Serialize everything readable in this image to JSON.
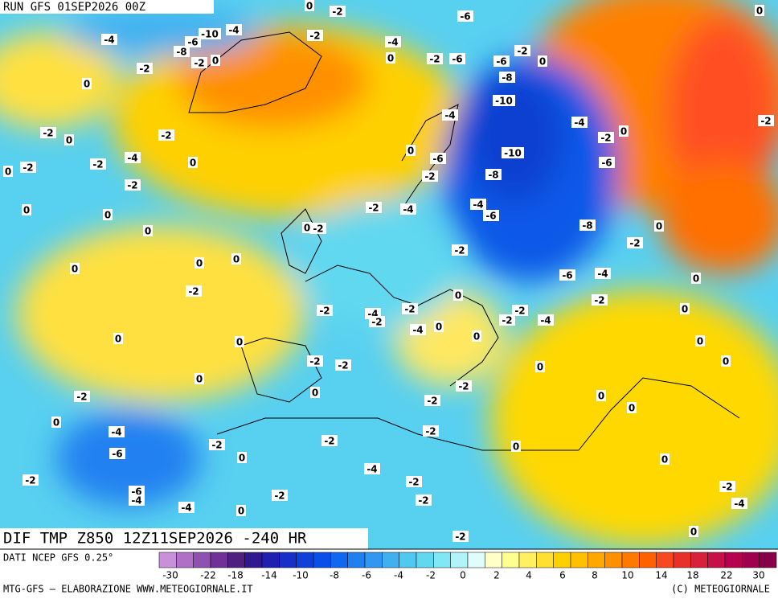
{
  "header": {
    "run": "RUN GFS 01SEP2026 00Z",
    "field": "DIF TMP Z850 12Z11SEP2026 -240 HR"
  },
  "contour_labels": [
    -4,
    -2,
    0,
    -2,
    0,
    -2,
    -4,
    -2,
    0,
    -2,
    0,
    -2,
    0,
    0,
    0,
    0,
    0,
    0,
    -2,
    0,
    0,
    0,
    -2,
    0,
    -4,
    -6,
    -2,
    0,
    -2,
    -6,
    -4,
    -4,
    0,
    -2,
    -2,
    -4,
    -2,
    -2,
    -2,
    -2,
    0,
    -2,
    -2,
    -2,
    -4,
    -2,
    -2,
    -4,
    0,
    0,
    -2,
    0,
    -2,
    0,
    0,
    -2,
    -2,
    -4,
    -6,
    -4,
    -2,
    -2,
    0,
    0,
    0,
    0,
    0,
    0,
    0,
    0,
    -2,
    -4,
    0,
    -2,
    -8,
    -6,
    -4,
    -8,
    -10,
    -6,
    -2,
    -2,
    -4,
    -4,
    -10,
    -8,
    -6,
    -2,
    0,
    -4,
    -2,
    0,
    -6,
    -6,
    -4,
    0,
    -2,
    -6,
    -2,
    0,
    -6,
    -10,
    -4,
    -8,
    -2,
    0,
    0,
    0,
    -2,
    -2,
    0,
    -2
  ],
  "colorbar": {
    "source": "DATI NCEP GFS 0.25°",
    "colors": [
      "#c890d8",
      "#b070c8",
      "#9050b0",
      "#703098",
      "#502080",
      "#301890",
      "#2020b0",
      "#1830c8",
      "#1040d8",
      "#0850e8",
      "#1068f0",
      "#2080f0",
      "#3098f0",
      "#40b0f0",
      "#50c8f0",
      "#60d8f0",
      "#80e8f4",
      "#b0f4f8",
      "#e0fcfc",
      "#ffffc8",
      "#ffff90",
      "#fff060",
      "#ffe030",
      "#ffd000",
      "#ffc000",
      "#ffa800",
      "#ff9000",
      "#ff7800",
      "#ff6000",
      "#f84820",
      "#e83028",
      "#d82038",
      "#c81048",
      "#b80050",
      "#a00050",
      "#880048"
    ],
    "ticks": [
      -30,
      -22,
      -18,
      -14,
      -10,
      -8,
      -6,
      -4,
      -2,
      0,
      2,
      4,
      6,
      8,
      10,
      14,
      18,
      22,
      30
    ]
  },
  "footer": {
    "left": "MTG-GFS – ELABORAZIONE WWW.METEOGIORNALE.IT",
    "right": "(C) METEOGIORNALE"
  }
}
